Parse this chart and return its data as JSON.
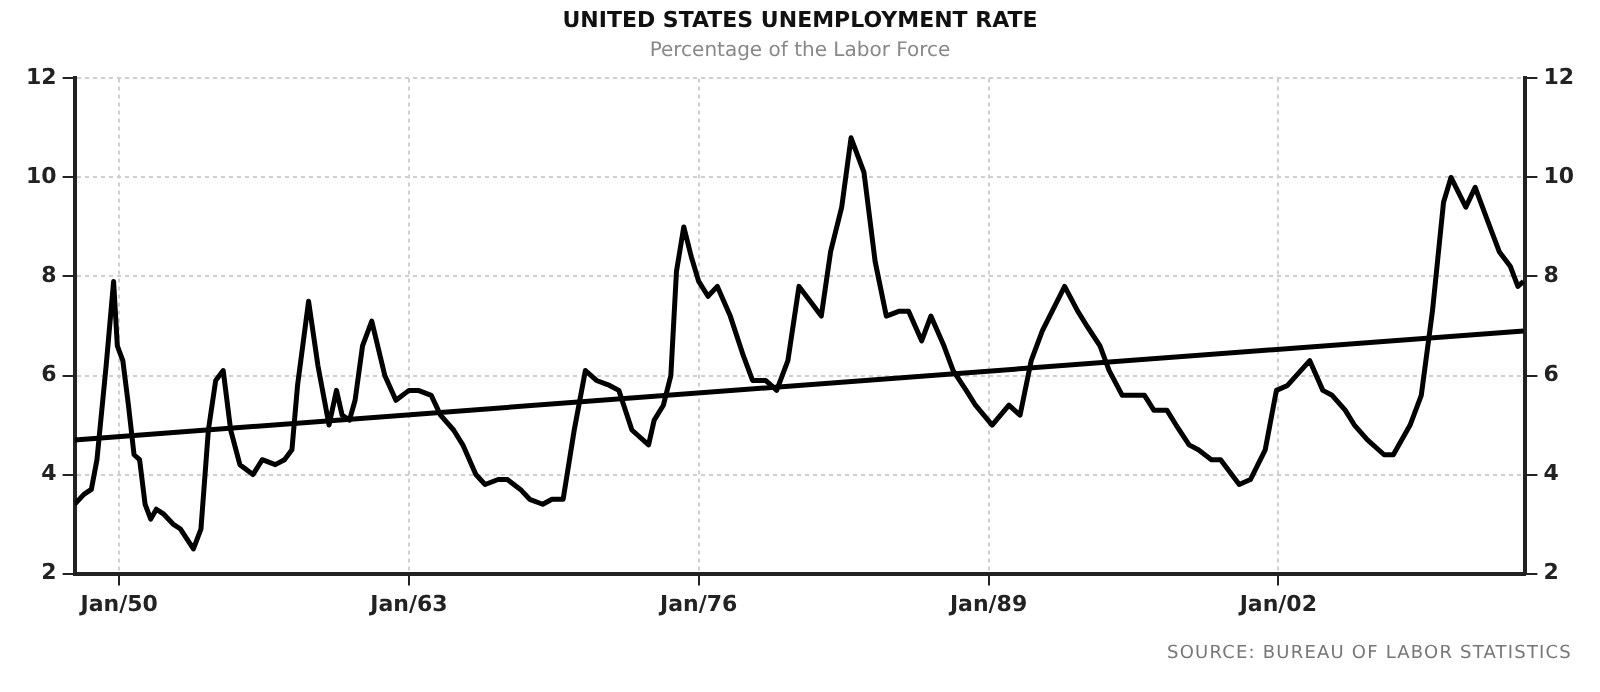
{
  "chart_data": {
    "type": "line",
    "title": "UNITED STATES UNEMPLOYMENT RATE",
    "subtitle": "Percentage of the Labor Force",
    "annotations": [
      "SOURCE: BUREAU OF LABOR STATISTICS"
    ],
    "x": [
      "1948-01",
      "1948-06",
      "1948-10",
      "1949-01",
      "1949-06",
      "1949-10",
      "1949-12",
      "1950-03",
      "1950-06",
      "1950-09",
      "1950-12",
      "1951-03",
      "1951-06",
      "1951-09",
      "1952-01",
      "1952-06",
      "1952-10",
      "1953-05",
      "1953-09",
      "1954-01",
      "1954-05",
      "1954-09",
      "1955-01",
      "1955-06",
      "1956-01",
      "1956-06",
      "1957-01",
      "1957-06",
      "1957-10",
      "1958-01",
      "1958-07",
      "1958-12",
      "1959-06",
      "1959-10",
      "1960-01",
      "1960-05",
      "1960-08",
      "1960-12",
      "1961-05",
      "1961-12",
      "1962-06",
      "1963-01",
      "1963-06",
      "1964-01",
      "1964-06",
      "1965-01",
      "1965-06",
      "1966-01",
      "1966-06",
      "1967-01",
      "1967-06",
      "1968-01",
      "1968-06",
      "1969-01",
      "1969-06",
      "1969-12",
      "1970-06",
      "1970-12",
      "1971-06",
      "1972-01",
      "1972-06",
      "1973-01",
      "1973-10",
      "1974-01",
      "1974-06",
      "1974-10",
      "1975-01",
      "1975-05",
      "1975-09",
      "1976-01",
      "1976-06",
      "1976-11",
      "1977-06",
      "1978-01",
      "1978-06",
      "1979-01",
      "1979-07",
      "1980-01",
      "1980-07",
      "1981-01",
      "1981-07",
      "1981-12",
      "1982-06",
      "1982-11",
      "1983-06",
      "1983-12",
      "1984-06",
      "1985-01",
      "1985-06",
      "1986-01",
      "1986-06",
      "1987-01",
      "1987-06",
      "1988-01",
      "1988-06",
      "1989-03",
      "1989-12",
      "1990-06",
      "1990-12",
      "1991-06",
      "1992-06",
      "1993-01",
      "1993-06",
      "1994-01",
      "1994-06",
      "1995-01",
      "1995-06",
      "1996-01",
      "1996-06",
      "1997-01",
      "1997-06",
      "1998-01",
      "1998-06",
      "1999-01",
      "1999-06",
      "2000-04",
      "2000-10",
      "2001-06",
      "2001-12",
      "2002-06",
      "2003-06",
      "2004-01",
      "2004-06",
      "2005-01",
      "2005-06",
      "2006-01",
      "2006-10",
      "2007-03",
      "2007-12",
      "2008-06",
      "2008-12",
      "2009-06",
      "2009-10",
      "2010-06",
      "2010-11",
      "2011-06",
      "2011-12",
      "2012-06",
      "2012-10",
      "2013-01"
    ],
    "series": [
      {
        "color": "#000000",
        "values": [
          3.4,
          3.6,
          3.7,
          4.3,
          6.2,
          7.9,
          6.6,
          6.3,
          5.4,
          4.4,
          4.3,
          3.4,
          3.1,
          3.3,
          3.2,
          3.0,
          2.9,
          2.5,
          2.9,
          4.9,
          5.9,
          6.1,
          4.9,
          4.2,
          4.0,
          4.3,
          4.2,
          4.3,
          4.5,
          5.8,
          7.5,
          6.2,
          5.0,
          5.7,
          5.2,
          5.1,
          5.5,
          6.6,
          7.1,
          6.0,
          5.5,
          5.7,
          5.7,
          5.6,
          5.2,
          4.9,
          4.6,
          4.0,
          3.8,
          3.9,
          3.9,
          3.7,
          3.5,
          3.4,
          3.5,
          3.5,
          4.9,
          6.1,
          5.9,
          5.8,
          5.7,
          4.9,
          4.6,
          5.1,
          5.4,
          6.0,
          8.1,
          9.0,
          8.4,
          7.9,
          7.6,
          7.8,
          7.2,
          6.4,
          5.9,
          5.9,
          5.7,
          6.3,
          7.8,
          7.5,
          7.2,
          8.5,
          9.4,
          10.8,
          10.1,
          8.3,
          7.2,
          7.3,
          7.3,
          6.7,
          7.2,
          6.6,
          6.1,
          5.7,
          5.4,
          5.0,
          5.4,
          5.2,
          6.3,
          6.9,
          7.8,
          7.3,
          7.0,
          6.6,
          6.1,
          5.6,
          5.6,
          5.6,
          5.3,
          5.3,
          5.0,
          4.6,
          4.5,
          4.3,
          4.3,
          3.8,
          3.9,
          4.5,
          5.7,
          5.8,
          6.3,
          5.7,
          5.6,
          5.3,
          5.0,
          4.7,
          4.4,
          4.4,
          5.0,
          5.6,
          7.3,
          9.5,
          10.0,
          9.4,
          9.8,
          9.1,
          8.5,
          8.2,
          7.8,
          7.9
        ]
      },
      {
        "type": "line",
        "color": "#000000",
        "x": [
          "1948-01",
          "2013-01"
        ],
        "values": [
          4.7,
          6.9
        ]
      }
    ],
    "xlim": [
      "1948-01",
      "2013-02"
    ],
    "xticks": [
      {
        "value": "1950-01",
        "label": "Jan/50"
      },
      {
        "value": "1963-01",
        "label": "Jan/63"
      },
      {
        "value": "1976-01",
        "label": "Jan/76"
      },
      {
        "value": "1989-01",
        "label": "Jan/89"
      },
      {
        "value": "2002-01",
        "label": "Jan/02"
      }
    ],
    "ylim": [
      2,
      12
    ],
    "yticks": [
      2,
      4,
      6,
      8,
      10,
      12
    ],
    "y2lim": [
      2,
      12
    ],
    "y2ticks": [
      2,
      4,
      6,
      8,
      10,
      12
    ],
    "grid": true
  }
}
